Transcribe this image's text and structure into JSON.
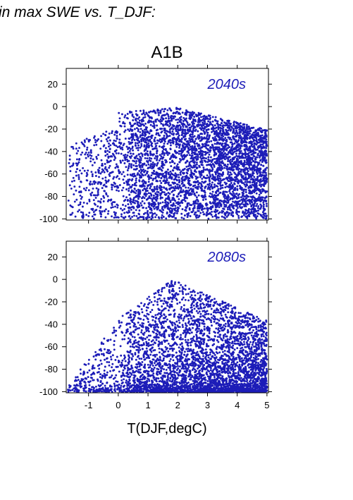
{
  "header_text": "in max SWE vs. T_DJF:",
  "colors": {
    "points": "#1d1db8",
    "frame": "#000000"
  },
  "chart_data": [
    {
      "type": "scatter",
      "title": "A1B",
      "annotation": "2040s",
      "xlabel": "",
      "ylabel": "",
      "xlim": [
        -1.75,
        5.05
      ],
      "ylim": [
        -101,
        34
      ],
      "yticks": [
        -100,
        -80,
        -60,
        -40,
        -20,
        0,
        20
      ],
      "xticks": [
        -1,
        0,
        1,
        2,
        3,
        4,
        5
      ],
      "show_x_tick_labels": false,
      "grid": false,
      "cloud": {
        "count": 4200,
        "x_range": [
          -1.7,
          5.0
        ],
        "y_range": [
          -100,
          3
        ],
        "density_peak_x": 2.9,
        "description": "dense cloud centered 2-4 degC spanning -100 to 0"
      }
    },
    {
      "type": "scatter",
      "annotation": "2080s",
      "xlabel": "T(DJF,degC)",
      "ylabel": "",
      "xlim": [
        -1.75,
        5.05
      ],
      "ylim": [
        -101,
        34
      ],
      "yticks": [
        -100,
        -80,
        -60,
        -40,
        -20,
        0,
        20
      ],
      "xticks": [
        -1,
        0,
        1,
        2,
        3,
        4,
        5
      ],
      "x_tick_labels": [
        "-1",
        "0",
        "1",
        "2",
        "3",
        "4",
        "5"
      ],
      "show_x_tick_labels": true,
      "grid": false,
      "cloud": {
        "count": 4200,
        "x_range": [
          -1.7,
          5.0
        ],
        "y_range": [
          -100,
          2
        ],
        "density_peak_x": 3.0,
        "description": "cloud concentrated near -100, arching to 0 around 1-2.5 degC"
      }
    }
  ]
}
